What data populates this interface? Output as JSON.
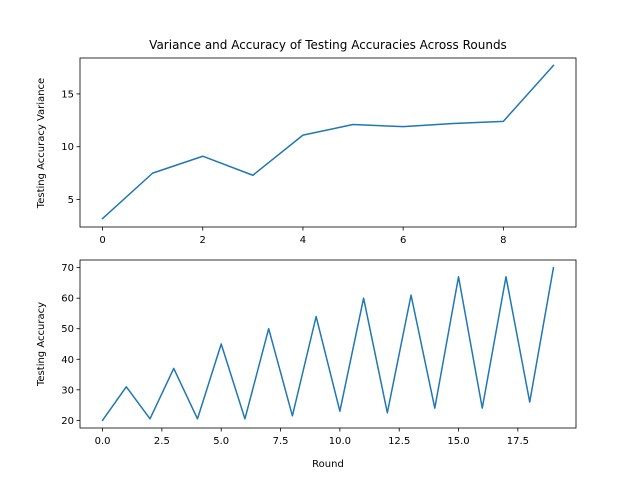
{
  "chart_data": [
    {
      "type": "line",
      "title": "Variance and Accuracy of Testing Accuracies Across Rounds",
      "xlabel": "",
      "ylabel": "Testing Accuracy Variance",
      "xlim": [
        -0.45,
        9.45
      ],
      "ylim": [
        2.4,
        18.4
      ],
      "xticks": [
        0,
        2,
        4,
        6,
        8
      ],
      "yticks": [
        5,
        10,
        15
      ],
      "grid": false,
      "color": "#1f77b4",
      "series": [
        {
          "x": [
            0,
            1,
            2,
            3,
            4,
            5,
            6,
            7,
            8,
            9
          ],
          "values": [
            3.2,
            7.5,
            9.1,
            7.3,
            11.1,
            12.1,
            11.9,
            12.2,
            12.4,
            17.7
          ]
        }
      ]
    },
    {
      "type": "line",
      "title": "",
      "xlabel": "Round",
      "ylabel": "Testing Accuracy",
      "xlim": [
        -0.95,
        19.95
      ],
      "ylim": [
        17.5,
        72.5
      ],
      "xticks": [
        0.0,
        2.5,
        5.0,
        7.5,
        10.0,
        12.5,
        15.0,
        17.5
      ],
      "xtick_labels": [
        "0.0",
        "2.5",
        "5.0",
        "7.5",
        "10.0",
        "12.5",
        "15.0",
        "17.5"
      ],
      "yticks": [
        20,
        30,
        40,
        50,
        60,
        70
      ],
      "grid": false,
      "color": "#1f77b4",
      "series": [
        {
          "x": [
            0,
            1,
            2,
            3,
            4,
            5,
            6,
            7,
            8,
            9,
            10,
            11,
            12,
            13,
            14,
            15,
            16,
            17,
            18,
            19
          ],
          "values": [
            20,
            31,
            20.5,
            37,
            20.5,
            45,
            20.5,
            50,
            21.5,
            54,
            23,
            60,
            22.5,
            61,
            24,
            67,
            24,
            67,
            26,
            70
          ]
        }
      ]
    }
  ]
}
